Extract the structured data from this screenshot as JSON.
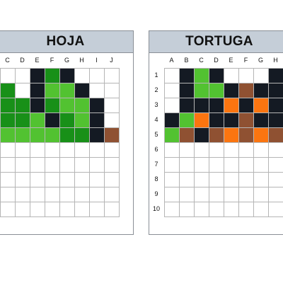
{
  "colors": {
    "W": "#ffffff",
    "K": "#141a23",
    "G": "#189018",
    "L": "#52c231",
    "B": "#8f5132",
    "O": "#fb7510"
  },
  "panels": [
    {
      "title": "HOJA",
      "col_labels": [
        "C",
        "D",
        "E",
        "F",
        "G",
        "H",
        "I",
        "J"
      ],
      "row_labels": [],
      "grid": [
        [
          "W",
          "W",
          "K",
          "G",
          "K",
          "W",
          "W",
          "W"
        ],
        [
          "G",
          "W",
          "K",
          "L",
          "L",
          "K",
          "W",
          "W"
        ],
        [
          "G",
          "G",
          "K",
          "G",
          "L",
          "L",
          "K",
          "W"
        ],
        [
          "G",
          "G",
          "L",
          "K",
          "G",
          "L",
          "K",
          "W"
        ],
        [
          "L",
          "L",
          "L",
          "L",
          "G",
          "G",
          "K",
          "B"
        ],
        [
          "W",
          "W",
          "W",
          "W",
          "W",
          "W",
          "W",
          "W"
        ],
        [
          "W",
          "W",
          "W",
          "W",
          "W",
          "W",
          "W",
          "W"
        ],
        [
          "W",
          "W",
          "W",
          "W",
          "W",
          "W",
          "W",
          "W"
        ],
        [
          "W",
          "W",
          "W",
          "W",
          "W",
          "W",
          "W",
          "W"
        ],
        [
          "W",
          "W",
          "W",
          "W",
          "W",
          "W",
          "W",
          "W"
        ]
      ]
    },
    {
      "title": "TORTUGA",
      "col_labels": [
        "A",
        "B",
        "C",
        "D",
        "E",
        "F",
        "G",
        "H"
      ],
      "row_labels": [
        "1",
        "2",
        "3",
        "4",
        "5",
        "6",
        "7",
        "8",
        "9",
        "10"
      ],
      "grid": [
        [
          "W",
          "K",
          "L",
          "K",
          "W",
          "W",
          "W",
          "K"
        ],
        [
          "W",
          "K",
          "L",
          "L",
          "K",
          "B",
          "K",
          "K"
        ],
        [
          "W",
          "K",
          "K",
          "K",
          "O",
          "K",
          "O",
          "K"
        ],
        [
          "K",
          "L",
          "O",
          "K",
          "K",
          "B",
          "K",
          "K"
        ],
        [
          "L",
          "B",
          "K",
          "B",
          "O",
          "B",
          "O",
          "B"
        ],
        [
          "W",
          "W",
          "W",
          "W",
          "W",
          "W",
          "W",
          "W"
        ],
        [
          "W",
          "W",
          "W",
          "W",
          "W",
          "W",
          "W",
          "W"
        ],
        [
          "W",
          "W",
          "W",
          "W",
          "W",
          "W",
          "W",
          "W"
        ],
        [
          "W",
          "W",
          "W",
          "W",
          "W",
          "W",
          "W",
          "W"
        ],
        [
          "W",
          "W",
          "W",
          "W",
          "W",
          "W",
          "W",
          "W"
        ]
      ]
    }
  ]
}
